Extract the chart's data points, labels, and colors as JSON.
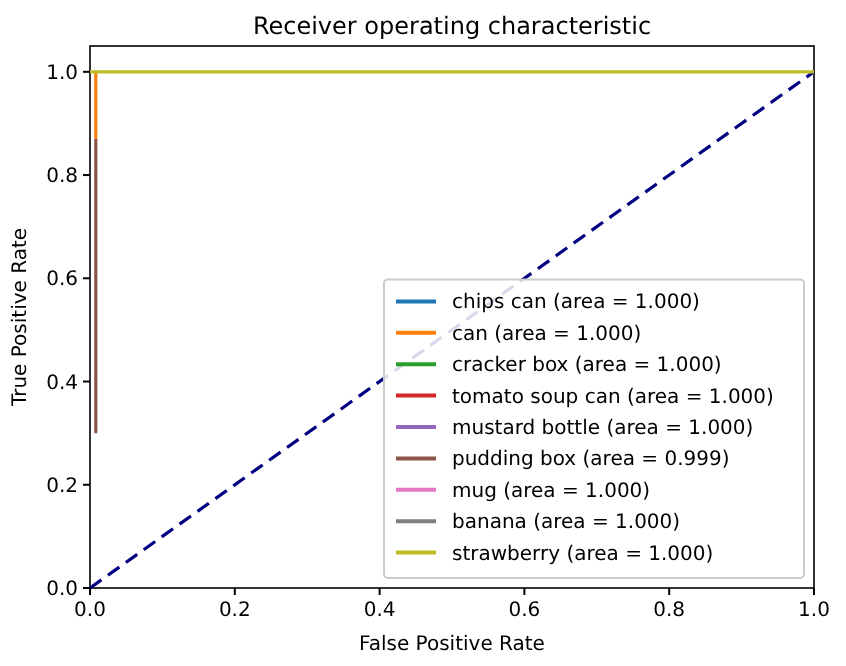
{
  "chart_data": {
    "type": "line",
    "title": "Receiver operating characteristic",
    "xlabel": "False Positive Rate",
    "ylabel": "True Positive Rate",
    "xlim": [
      0,
      1
    ],
    "ylim": [
      0,
      1.05
    ],
    "xticks": [
      {
        "value": 0,
        "label": "0.0"
      },
      0.2,
      0.4,
      0.6,
      0.8,
      {
        "value": 1,
        "label": "1.0"
      }
    ],
    "yticks": [
      {
        "value": 0,
        "label": "0.0"
      },
      0.2,
      0.4,
      0.6,
      0.8,
      {
        "value": 1,
        "label": "1.0"
      }
    ],
    "legend": "bottom right",
    "grid": false,
    "series": [
      {
        "name": "chips can (area = 1.000)",
        "color": "#1f77b4"
      },
      {
        "name": "can (area = 1.000)",
        "color": "#ff7f0e",
        "x": [
          0.008,
          0.008
        ],
        "values": [
          0.87,
          1
        ]
      },
      {
        "name": "cracker box (area = 1.000)",
        "color": "#2ca02c"
      },
      {
        "name": "tomato soup can (area = 1.000)",
        "color": "#d62728"
      },
      {
        "name": "mustard bottle (area = 1.000)",
        "color": "#9467bd"
      },
      {
        "name": "pudding box (area = 0.999)",
        "color": "#8c564b",
        "x": [
          0.008,
          0.008
        ],
        "values": [
          0.3,
          0.87
        ]
      },
      {
        "name": "mug (area = 1.000)",
        "color": "#e377c2"
      },
      {
        "name": "banana (area = 1.000)",
        "color": "#7f7f7f"
      },
      {
        "name": "strawberry (area = 1.000)",
        "color": "#bcbd22",
        "x": [
          0,
          1
        ],
        "values": [
          1,
          1
        ],
        "line_style": "solid"
      },
      {
        "color": "#000080",
        "x": [
          0,
          1
        ],
        "values": [
          0,
          1
        ],
        "line_style": "dashed"
      }
    ]
  }
}
